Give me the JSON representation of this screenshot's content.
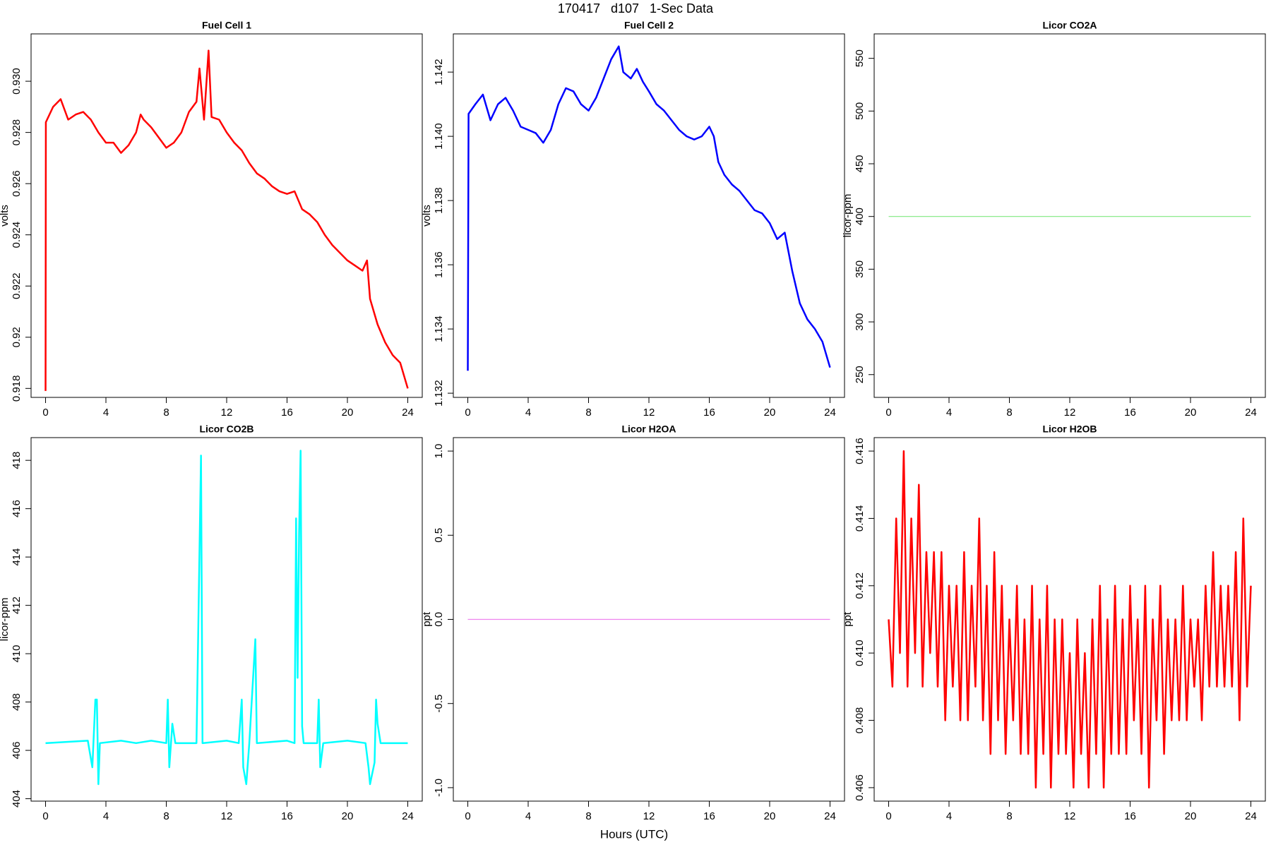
{
  "title": "170417   d107   1-Sec Data",
  "xlabel": "Hours (UTC)",
  "chart_data": [
    {
      "type": "line",
      "title": "Fuel Cell 1",
      "ylabel": "volts",
      "color": "#ff0000",
      "x": [
        0,
        0.02,
        0.5,
        1,
        1.5,
        2,
        2.5,
        3,
        3.5,
        4,
        4.5,
        5,
        5.5,
        6,
        6.3,
        6.5,
        7,
        7.5,
        8,
        8.5,
        9,
        9.5,
        10,
        10.2,
        10.5,
        10.8,
        11,
        11.5,
        12,
        12.5,
        13,
        13.5,
        14,
        14.5,
        15,
        15.5,
        16,
        16.5,
        17,
        17.5,
        18,
        18.5,
        19,
        19.5,
        20,
        20.5,
        21,
        21.3,
        21.5,
        22,
        22.5,
        23,
        23.5,
        24
      ],
      "values": [
        0.9179,
        0.9284,
        0.929,
        0.9293,
        0.9285,
        0.9287,
        0.9288,
        0.9285,
        0.928,
        0.9276,
        0.9276,
        0.9272,
        0.9275,
        0.928,
        0.9287,
        0.9285,
        0.9282,
        0.9278,
        0.9274,
        0.9276,
        0.928,
        0.9288,
        0.9292,
        0.9305,
        0.9285,
        0.9312,
        0.9286,
        0.9285,
        0.928,
        0.9276,
        0.9273,
        0.9268,
        0.9264,
        0.9262,
        0.9259,
        0.9257,
        0.9256,
        0.9257,
        0.925,
        0.9248,
        0.9245,
        0.924,
        0.9236,
        0.9233,
        0.923,
        0.9228,
        0.9226,
        0.923,
        0.9215,
        0.9205,
        0.9198,
        0.9193,
        0.919,
        0.918
      ],
      "xlim": [
        -0.96,
        24.96
      ],
      "xticks": [
        0,
        4,
        8,
        12,
        16,
        20,
        24
      ],
      "ylim": [
        0.91765,
        0.93185
      ],
      "yticks": [
        0.918,
        0.92,
        0.922,
        0.924,
        0.926,
        0.928,
        {
          "value": 0.93,
          "label": "0.930"
        }
      ]
    },
    {
      "type": "line",
      "title": "Fuel Cell 2",
      "ylabel": "volts",
      "color": "#0000ff",
      "x": [
        0,
        0.05,
        0.5,
        1,
        1.5,
        2,
        2.5,
        3,
        3.5,
        4,
        4.5,
        5,
        5.5,
        6,
        6.5,
        7,
        7.5,
        8,
        8.5,
        9,
        9.5,
        10,
        10.3,
        10.8,
        11.2,
        11.6,
        12,
        12.5,
        13,
        13.5,
        14,
        14.5,
        15,
        15.5,
        16,
        16.3,
        16.6,
        17,
        17.5,
        18,
        18.5,
        19,
        19.5,
        20,
        20.5,
        21,
        21.5,
        22,
        22.5,
        23,
        23.5,
        24
      ],
      "values": [
        1.1327,
        1.1407,
        1.141,
        1.1413,
        1.1405,
        1.141,
        1.1412,
        1.1408,
        1.1403,
        1.1402,
        1.1401,
        1.1398,
        1.1402,
        1.141,
        1.1415,
        1.1414,
        1.141,
        1.1408,
        1.1412,
        1.1418,
        1.1424,
        1.1428,
        1.142,
        1.1418,
        1.1421,
        1.1417,
        1.1414,
        1.141,
        1.1408,
        1.1405,
        1.1402,
        1.14,
        1.1399,
        1.14,
        1.1403,
        1.14,
        1.1392,
        1.1388,
        1.1385,
        1.1383,
        1.138,
        1.1377,
        1.1376,
        1.1373,
        1.1368,
        1.137,
        1.1358,
        1.1348,
        1.1343,
        1.134,
        1.1336,
        1.1328
      ],
      "xlim": [
        -0.96,
        24.96
      ],
      "xticks": [
        0,
        4,
        8,
        12,
        16,
        20,
        24
      ],
      "ylim": [
        1.13187,
        1.14319
      ],
      "yticks": [
        1.132,
        1.134,
        1.136,
        1.138,
        {
          "value": 1.14,
          "label": "1.140"
        },
        1.142
      ]
    },
    {
      "type": "line",
      "title": "Licor CO2A",
      "ylabel": "licor-ppm",
      "color": "#7fe87f",
      "x": [
        0,
        24
      ],
      "values": [
        400,
        400
      ],
      "xlim": [
        -0.96,
        24.96
      ],
      "xticks": [
        0,
        4,
        8,
        12,
        16,
        20,
        24
      ],
      "ylim": [
        228.4,
        573.2
      ],
      "yticks": [
        250,
        300,
        350,
        400,
        450,
        500,
        550
      ]
    },
    {
      "type": "line",
      "title": "Licor CO2B",
      "ylabel": "licor-ppm",
      "color": "#00ffff",
      "x": [
        0,
        2.8,
        3.1,
        3.3,
        3.4,
        3.5,
        3.6,
        5,
        6,
        7,
        8,
        8.1,
        8.2,
        8.4,
        8.6,
        10,
        10.3,
        10.4,
        12,
        12.8,
        13,
        13.1,
        13.3,
        13.5,
        13.9,
        14,
        16,
        16.5,
        16.6,
        16.7,
        16.8,
        16.9,
        17,
        17.1,
        18,
        18.1,
        18.2,
        18.4,
        20,
        21.2,
        21.4,
        21.5,
        21.8,
        21.9,
        22,
        22.2,
        24
      ],
      "values": [
        406.3,
        406.4,
        405.3,
        408.1,
        408.1,
        404.6,
        406.3,
        406.4,
        406.3,
        406.4,
        406.3,
        408.1,
        405.3,
        407.1,
        406.3,
        406.3,
        418.2,
        406.3,
        406.4,
        406.3,
        408.1,
        405.3,
        404.6,
        406.3,
        410.6,
        406.3,
        406.4,
        406.3,
        415.6,
        409,
        415,
        418.4,
        407,
        406.3,
        406.3,
        408.1,
        405.3,
        406.3,
        406.4,
        406.3,
        405.3,
        404.6,
        405.5,
        408.1,
        407.1,
        406.3,
        406.3
      ],
      "xlim": [
        -0.96,
        24.96
      ],
      "xticks": [
        0,
        4,
        8,
        12,
        16,
        20,
        24
      ],
      "ylim": [
        403.9,
        418.94
      ],
      "yticks": [
        404,
        406,
        408,
        410,
        412,
        414,
        416,
        418
      ]
    },
    {
      "type": "line",
      "title": "Licor H2OA",
      "ylabel": "ppt",
      "color": "#ee82ee",
      "x": [
        0,
        24
      ],
      "values": [
        0,
        0
      ],
      "xlim": [
        -0.96,
        24.96
      ],
      "xticks": [
        0,
        4,
        8,
        12,
        16,
        20,
        24
      ],
      "ylim": [
        -1.08,
        1.08
      ],
      "yticks": [
        {
          "value": -1,
          "label": "-1.0"
        },
        {
          "value": -0.5,
          "label": "-0.5"
        },
        {
          "value": 0,
          "label": "0.0"
        },
        {
          "value": 0.5,
          "label": "0.5"
        },
        {
          "value": 1,
          "label": "1.0"
        }
      ]
    },
    {
      "type": "line",
      "title": "Licor H2OB",
      "ylabel": "ppt",
      "color": "#ff0000",
      "x": [
        0,
        0.25,
        0.5,
        0.75,
        1,
        1.25,
        1.5,
        1.75,
        2,
        2.25,
        2.5,
        2.75,
        3,
        3.25,
        3.5,
        3.75,
        4,
        4.25,
        4.5,
        4.75,
        5,
        5.25,
        5.5,
        5.75,
        6,
        6.25,
        6.5,
        6.75,
        7,
        7.25,
        7.5,
        7.75,
        8,
        8.25,
        8.5,
        8.75,
        9,
        9.25,
        9.5,
        9.75,
        10,
        10.25,
        10.5,
        10.75,
        11,
        11.25,
        11.5,
        11.75,
        12,
        12.25,
        12.5,
        12.75,
        13,
        13.25,
        13.5,
        13.75,
        14,
        14.25,
        14.5,
        14.75,
        15,
        15.25,
        15.5,
        15.75,
        16,
        16.25,
        16.5,
        16.75,
        17,
        17.25,
        17.5,
        17.75,
        18,
        18.25,
        18.5,
        18.75,
        19,
        19.25,
        19.5,
        19.75,
        20,
        20.25,
        20.5,
        20.75,
        21,
        21.25,
        21.5,
        21.75,
        22,
        22.25,
        22.5,
        22.75,
        23,
        23.25,
        23.5,
        23.75,
        24
      ],
      "values": [
        0.411,
        0.409,
        0.414,
        0.41,
        0.416,
        0.409,
        0.414,
        0.41,
        0.415,
        0.409,
        0.413,
        0.41,
        0.413,
        0.409,
        0.413,
        0.408,
        0.412,
        0.409,
        0.412,
        0.408,
        0.413,
        0.408,
        0.412,
        0.409,
        0.414,
        0.408,
        0.412,
        0.407,
        0.413,
        0.408,
        0.412,
        0.407,
        0.411,
        0.408,
        0.412,
        0.407,
        0.411,
        0.407,
        0.412,
        0.406,
        0.411,
        0.407,
        0.412,
        0.406,
        0.411,
        0.407,
        0.411,
        0.407,
        0.41,
        0.406,
        0.411,
        0.407,
        0.41,
        0.406,
        0.411,
        0.407,
        0.412,
        0.406,
        0.411,
        0.407,
        0.412,
        0.407,
        0.411,
        0.407,
        0.412,
        0.408,
        0.411,
        0.407,
        0.412,
        0.406,
        0.411,
        0.408,
        0.412,
        0.407,
        0.411,
        0.408,
        0.411,
        0.408,
        0.412,
        0.408,
        0.411,
        0.409,
        0.411,
        0.408,
        0.412,
        0.409,
        0.413,
        0.409,
        0.412,
        0.409,
        0.412,
        0.409,
        0.413,
        0.408,
        0.414,
        0.409,
        0.412
      ],
      "xlim": [
        -0.96,
        24.96
      ],
      "xticks": [
        0,
        4,
        8,
        12,
        16,
        20,
        24
      ],
      "ylim": [
        0.4056,
        0.4164
      ],
      "yticks": [
        0.406,
        0.408,
        {
          "value": 0.41,
          "label": "0.410"
        },
        0.412,
        0.414,
        0.416
      ]
    }
  ]
}
